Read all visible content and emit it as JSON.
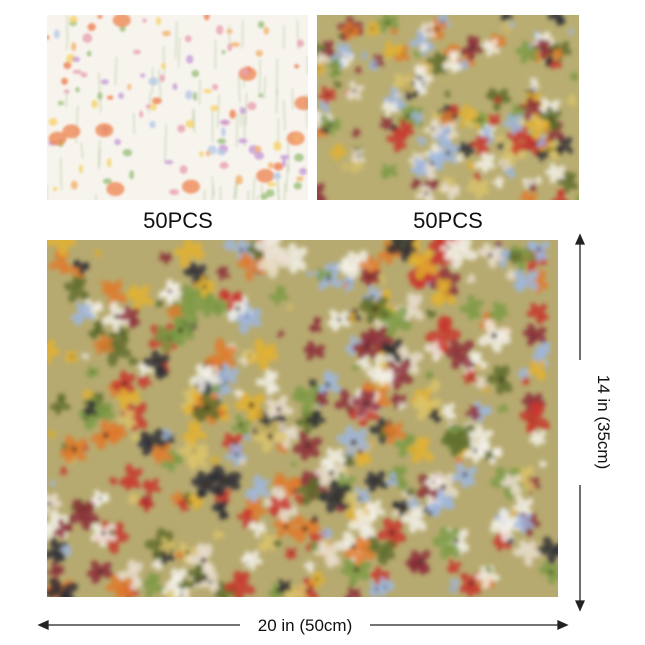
{
  "panels": [
    {
      "label": "50PCS"
    },
    {
      "label": "50PCS"
    }
  ],
  "dimensions": {
    "width": "20 in (50cm)",
    "height": "14 in (35cm)"
  }
}
